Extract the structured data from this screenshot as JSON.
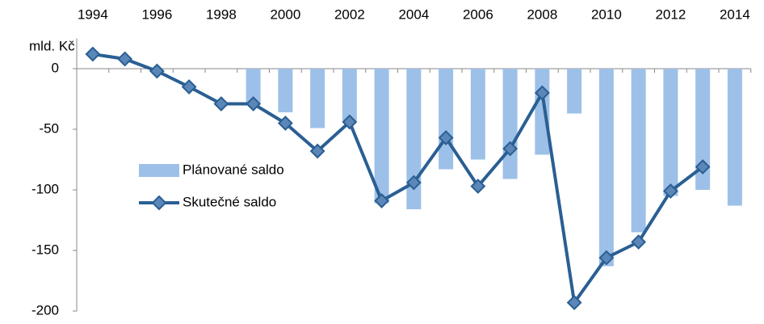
{
  "chart_data": {
    "type": "combo",
    "y_label": "mld. Kč",
    "categories": [
      "1994",
      null,
      "1996",
      null,
      "1998",
      null,
      "2000",
      null,
      "2002",
      null,
      "2004",
      null,
      "2006",
      null,
      "2008",
      null,
      "2010",
      null,
      "2012",
      null,
      "2014"
    ],
    "series": [
      {
        "name": "Plánované saldo",
        "type": "bar",
        "color": "#9dc0e8",
        "values": [
          null,
          null,
          null,
          null,
          null,
          -30,
          -36,
          -49,
          -43,
          -111,
          -116,
          -83,
          -75,
          -91,
          -71,
          -37,
          -163,
          -135,
          -105,
          -100,
          -113
        ]
      },
      {
        "name": "Skutečné saldo",
        "type": "line",
        "color": "#2a5f93",
        "values": [
          12,
          8,
          -2,
          -15,
          -29,
          -29,
          -45,
          -68,
          -44,
          -109,
          -94,
          -57,
          -97,
          -66,
          -20,
          -193,
          -156,
          -143,
          -101,
          -81,
          null
        ]
      }
    ],
    "ylim": [
      -200,
      25
    ],
    "yticks": [
      0,
      -50,
      -100,
      -150,
      -200
    ],
    "grid": false,
    "legend": "left"
  }
}
